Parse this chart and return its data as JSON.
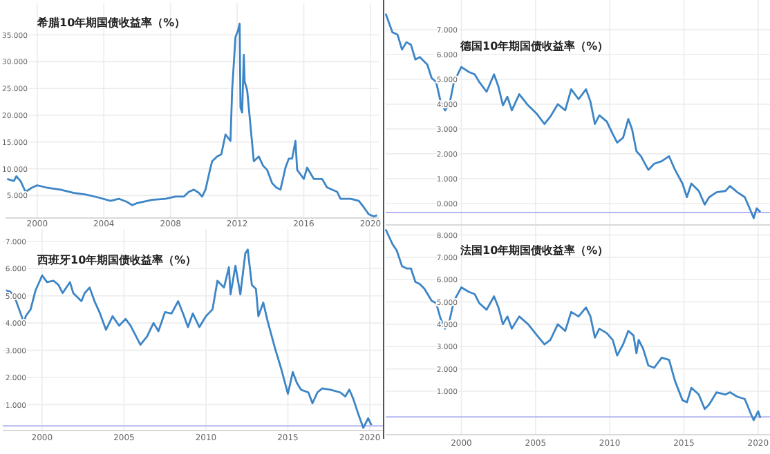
{
  "chart_data": [
    {
      "type": "line",
      "title": "希腊10年期国债收益率（%）",
      "grid": true,
      "x": [
        1998.2,
        1998.6,
        1998.75,
        1999.0,
        1999.3,
        1999.7,
        2000.0,
        2000.55,
        2001.4,
        2002.2,
        2002.9,
        2003.6,
        2004.4,
        2004.9,
        2005.4,
        2005.7,
        2006.0,
        2006.9,
        2007.7,
        2008.3,
        2008.8,
        2009.1,
        2009.4,
        2009.7,
        2009.9,
        2010.1,
        2010.4,
        2010.5,
        2010.8,
        2011.05,
        2011.3,
        2011.6,
        2011.7,
        2011.9,
        2012.05,
        2012.15,
        2012.2,
        2012.3,
        2012.4,
        2012.45,
        2012.6,
        2012.85,
        2013.0,
        2013.3,
        2013.55,
        2013.8,
        2014.1,
        2014.35,
        2014.6,
        2014.9,
        2015.1,
        2015.3,
        2015.5,
        2015.6,
        2016.0,
        2016.2,
        2016.6,
        2017.1,
        2017.4,
        2018.0,
        2018.2,
        2018.8,
        2019.3,
        2019.6,
        2019.9,
        2020.2,
        2020.4
      ],
      "series": [
        {
          "color": "#3d85c6",
          "values": [
            8.1,
            7.7,
            8.6,
            7.7,
            5.7,
            6.5,
            6.9,
            6.5,
            6.1,
            5.5,
            5.2,
            4.7,
            4.0,
            4.4,
            3.8,
            3.2,
            3.6,
            4.2,
            4.4,
            4.8,
            4.8,
            5.7,
            6.1,
            5.5,
            4.8,
            6.1,
            10.2,
            11.4,
            12.3,
            12.7,
            16.4,
            15.2,
            24.7,
            34.6,
            35.8,
            37.1,
            21.4,
            20.5,
            31.3,
            26.3,
            24.7,
            16.4,
            11.4,
            12.3,
            10.6,
            9.8,
            7.3,
            6.5,
            6.1,
            10.2,
            11.9,
            11.9,
            15.2,
            9.8,
            8.1,
            10.2,
            8.1,
            8.1,
            6.5,
            5.7,
            4.4,
            4.4,
            4.0,
            2.8,
            1.5,
            1.1,
            1.3
          ]
        }
      ],
      "xlim": [
        1998.1,
        2020.5
      ],
      "ylim": [
        0.8,
        41
      ],
      "xticks": [
        2000,
        2004,
        2008,
        2012,
        2016,
        2020
      ],
      "yticks": [
        {
          "value": 5,
          "label": "5.000"
        },
        {
          "value": 10,
          "label": "10.000"
        },
        {
          "value": 15,
          "label": "15.000"
        },
        {
          "value": 20,
          "label": "20.000"
        },
        {
          "value": 25,
          "label": "25.000"
        },
        {
          "value": 30,
          "label": "30.000"
        },
        {
          "value": 35,
          "label": "35.000"
        }
      ]
    },
    {
      "type": "line",
      "title": "德国10年期国债收益率（%）",
      "grid": true,
      "tick_labels": "y",
      "x": [
        1994.9,
        1995.35,
        1995.7,
        1996.0,
        1996.3,
        1996.6,
        1996.9,
        1997.2,
        1997.7,
        1998.0,
        1998.3,
        1998.6,
        1998.9,
        1999.2,
        1999.5,
        2000.0,
        2000.5,
        2000.9,
        2001.2,
        2001.7,
        2002.2,
        2002.5,
        2002.8,
        2003.1,
        2003.4,
        2003.9,
        2004.5,
        2005.1,
        2005.6,
        2006.0,
        2006.5,
        2007.0,
        2007.4,
        2007.9,
        2008.4,
        2008.7,
        2009.0,
        2009.3,
        2009.8,
        2010.2,
        2010.5,
        2010.9,
        2011.25,
        2011.5,
        2011.8,
        2012.1,
        2012.6,
        2013.0,
        2013.5,
        2014.0,
        2014.4,
        2014.9,
        2015.2,
        2015.5,
        2016.0,
        2016.4,
        2016.7,
        2017.2,
        2017.8,
        2018.1,
        2018.6,
        2019.1,
        2019.5,
        2019.7,
        2019.9,
        2020.15
      ],
      "series": [
        {
          "color": "#3d85c6",
          "values": [
            7.65,
            6.9,
            6.8,
            6.2,
            6.5,
            6.4,
            5.8,
            5.9,
            5.6,
            5.05,
            4.9,
            4.1,
            3.75,
            4.0,
            4.9,
            5.5,
            5.3,
            5.2,
            4.9,
            4.5,
            5.2,
            4.7,
            3.95,
            4.3,
            3.75,
            4.4,
            3.95,
            3.6,
            3.2,
            3.5,
            4.0,
            3.75,
            4.6,
            4.2,
            4.6,
            4.1,
            3.2,
            3.55,
            3.3,
            2.8,
            2.45,
            2.65,
            3.4,
            3.0,
            2.1,
            1.9,
            1.35,
            1.6,
            1.7,
            1.9,
            1.35,
            0.8,
            0.25,
            0.8,
            0.5,
            -0.05,
            0.25,
            0.45,
            0.5,
            0.7,
            0.45,
            0.25,
            -0.3,
            -0.6,
            -0.2,
            -0.35
          ]
        }
      ],
      "xlim": [
        1994.9,
        2020.8
      ],
      "ylim": [
        -0.87,
        8.2
      ],
      "xticks": [
        {
          "value": 2000,
          "label": null
        },
        {
          "value": 2005,
          "label": null
        },
        {
          "value": 2010,
          "label": null
        },
        {
          "value": 2015,
          "label": null
        },
        {
          "value": 2020,
          "label": null
        }
      ],
      "yticks": [
        {
          "value": 0,
          "label": "0.000"
        },
        {
          "value": 1,
          "label": "1.000"
        },
        {
          "value": 2,
          "label": "2.000"
        },
        {
          "value": 3,
          "label": "3.000"
        },
        {
          "value": 4,
          "label": "4.000"
        },
        {
          "value": 5,
          "label": "5.000"
        },
        {
          "value": 6,
          "label": "6.000"
        },
        {
          "value": 7,
          "label": "7.000"
        }
      ],
      "ref_lines": [
        {
          "axis": "y",
          "value": -0.37,
          "color": "#b4b4f0"
        }
      ]
    },
    {
      "type": "line",
      "title": "西班牙10年期国债收益率（%）",
      "grid": true,
      "x": [
        1997.8,
        1998.05,
        1998.3,
        1998.6,
        1998.9,
        1999.0,
        1999.3,
        1999.6,
        1999.9,
        2000.0,
        2000.3,
        2000.7,
        2001.0,
        2001.25,
        2001.7,
        2001.9,
        2002.4,
        2002.6,
        2002.9,
        2003.2,
        2003.5,
        2003.9,
        2004.3,
        2004.7,
        2005.1,
        2005.4,
        2006.0,
        2006.4,
        2006.8,
        2007.1,
        2007.5,
        2007.9,
        2008.3,
        2008.6,
        2008.9,
        2009.2,
        2009.6,
        2010.0,
        2010.4,
        2010.7,
        2011.1,
        2011.4,
        2011.5,
        2011.8,
        2012.1,
        2012.4,
        2012.55,
        2012.8,
        2013.05,
        2013.2,
        2013.5,
        2013.75,
        2014.2,
        2014.6,
        2015.0,
        2015.3,
        2015.55,
        2015.8,
        2016.25,
        2016.5,
        2016.8,
        2017.1,
        2017.6,
        2018.2,
        2018.5,
        2018.75,
        2019.0,
        2019.3,
        2019.6,
        2019.9,
        2020.1
      ],
      "series": [
        {
          "color": "#3d85c6",
          "values": [
            5.2,
            5.15,
            5.0,
            4.5,
            4.0,
            4.25,
            4.5,
            5.2,
            5.6,
            5.75,
            5.5,
            5.55,
            5.4,
            5.1,
            5.5,
            5.1,
            4.8,
            5.1,
            5.3,
            4.8,
            4.4,
            3.75,
            4.25,
            3.9,
            4.15,
            3.9,
            3.2,
            3.5,
            4.0,
            3.7,
            4.4,
            4.35,
            4.8,
            4.35,
            3.85,
            4.35,
            3.85,
            4.25,
            4.5,
            5.55,
            5.3,
            6.05,
            5.05,
            6.1,
            5.05,
            6.55,
            6.7,
            5.4,
            5.25,
            4.25,
            4.75,
            4.1,
            3.1,
            2.3,
            1.4,
            2.2,
            1.8,
            1.55,
            1.45,
            1.05,
            1.45,
            1.6,
            1.55,
            1.45,
            1.3,
            1.55,
            1.2,
            0.65,
            0.15,
            0.5,
            0.25
          ]
        }
      ],
      "xlim": [
        1997.6,
        2020.8
      ],
      "ylim": [
        0.05,
        7.45
      ],
      "xticks": [
        2000,
        2005,
        2010,
        2015,
        2020
      ],
      "yticks": [
        {
          "value": 1,
          "label": "1.000"
        },
        {
          "value": 2,
          "label": "2.000"
        },
        {
          "value": 3,
          "label": "3.000"
        },
        {
          "value": 4,
          "label": "4.000"
        },
        {
          "value": 5,
          "label": "5.000"
        },
        {
          "value": 6,
          "label": "6.000"
        },
        {
          "value": 7,
          "label": "7.000"
        }
      ],
      "ref_lines": [
        {
          "axis": "y",
          "value": 0.22,
          "color": "#b4b4f0"
        }
      ]
    },
    {
      "type": "line",
      "title": "法国10年期国债收益率（%）",
      "grid": true,
      "x": [
        1994.9,
        1995.35,
        1995.65,
        1996.0,
        1996.3,
        1996.6,
        1996.9,
        1997.2,
        1997.5,
        1998.0,
        1998.3,
        1998.6,
        1998.9,
        1999.2,
        1999.5,
        2000.0,
        2000.5,
        2000.9,
        2001.2,
        2001.7,
        2002.2,
        2002.5,
        2002.8,
        2003.1,
        2003.4,
        2003.9,
        2004.5,
        2005.1,
        2005.6,
        2006.0,
        2006.5,
        2007.0,
        2007.4,
        2007.9,
        2008.4,
        2008.7,
        2009.0,
        2009.3,
        2009.8,
        2010.2,
        2010.5,
        2010.9,
        2011.25,
        2011.6,
        2011.8,
        2011.95,
        2012.25,
        2012.6,
        2013.0,
        2013.5,
        2014.0,
        2014.4,
        2014.9,
        2015.2,
        2015.5,
        2016.0,
        2016.4,
        2016.7,
        2017.2,
        2017.8,
        2018.1,
        2018.6,
        2019.1,
        2019.5,
        2019.7,
        2020.0,
        2020.15
      ],
      "series": [
        {
          "color": "#3d85c6",
          "values": [
            8.25,
            7.6,
            7.3,
            6.6,
            6.5,
            6.5,
            5.9,
            5.8,
            5.6,
            5.05,
            4.95,
            4.25,
            3.8,
            4.15,
            5.05,
            5.65,
            5.45,
            5.35,
            4.95,
            4.65,
            5.25,
            4.75,
            4.0,
            4.35,
            3.8,
            4.35,
            4.0,
            3.5,
            3.1,
            3.3,
            4.0,
            3.7,
            4.55,
            4.35,
            4.75,
            4.35,
            3.4,
            3.8,
            3.6,
            3.3,
            2.6,
            3.1,
            3.7,
            3.5,
            2.7,
            3.3,
            2.9,
            2.15,
            2.05,
            2.5,
            2.4,
            1.45,
            0.6,
            0.5,
            1.15,
            0.85,
            0.2,
            0.4,
            0.95,
            0.85,
            0.95,
            0.75,
            0.65,
            0.0,
            -0.3,
            0.1,
            -0.2
          ]
        }
      ],
      "xlim": [
        1994.9,
        2020.8
      ],
      "ylim": [
        -0.95,
        8.45
      ],
      "xticks": [
        2000,
        2005,
        2010,
        2015,
        2020
      ],
      "yticks": [
        {
          "value": 1,
          "label": "1.000"
        },
        {
          "value": 2,
          "label": "2.000"
        },
        {
          "value": 3,
          "label": "3.000"
        },
        {
          "value": 4,
          "label": "4.000"
        },
        {
          "value": 5,
          "label": "5.000"
        },
        {
          "value": 6,
          "label": "6.000"
        },
        {
          "value": 7,
          "label": "7.000"
        },
        {
          "value": 8,
          "label": "8.000"
        }
      ],
      "ref_lines": [
        {
          "axis": "y",
          "value": -0.15,
          "color": "#b4b4f0"
        }
      ]
    }
  ]
}
